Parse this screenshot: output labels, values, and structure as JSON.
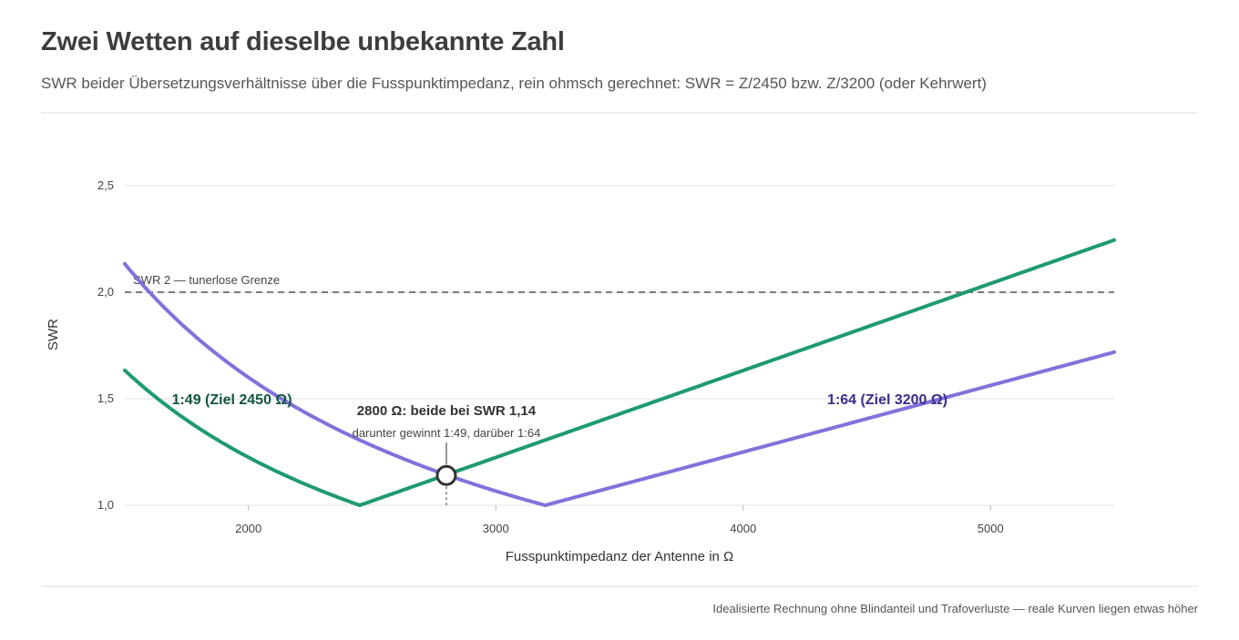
{
  "header": {
    "title": "Zwei Wetten auf dieselbe unbekannte Zahl",
    "subtitle": "SWR beider Übersetzungsverhältnisse über die Fusspunktimpedanz, rein ohmsch gerechnet: SWR = Z/2450 bzw. Z/3200 (oder Kehrwert)"
  },
  "footer": {
    "note": "Idealisierte Rechnung ohne Blindanteil und Trafoverluste — reale Kurven liegen etwas höher"
  },
  "colors": {
    "series_1_49": "#1e9a72",
    "series_1_64": "#8272da",
    "label_1_49": "#12563f",
    "label_1_64": "#3b2d8a",
    "reference": "#555555",
    "grid": "#ececec"
  },
  "chart_data": {
    "type": "line",
    "xlabel": "Fusspunktimpedanz der Antenne in Ω",
    "ylabel": "SWR",
    "xlim": [
      1500,
      5500
    ],
    "ylim": [
      1.0,
      2.5
    ],
    "x_ticks": [
      2000,
      3000,
      4000,
      5000
    ],
    "x_tick_labels": [
      "2000",
      "3000",
      "4000",
      "5000"
    ],
    "y_ticks": [
      1.0,
      1.5,
      2.0,
      2.5
    ],
    "y_tick_labels": [
      "1,0",
      "1,5",
      "2,0",
      "2,5"
    ],
    "grid": "horizontal",
    "series": [
      {
        "name": "1:49 (Ziel 2450 Ω)",
        "target": 2450,
        "x": [
          1500,
          1600,
          1700,
          1800,
          1900,
          2000,
          2100,
          2200,
          2300,
          2400,
          2450,
          2600,
          2800,
          3000,
          3200,
          3500,
          4000,
          4500,
          5000,
          5500
        ],
        "values": [
          1.633,
          1.531,
          1.441,
          1.361,
          1.289,
          1.225,
          1.167,
          1.114,
          1.065,
          1.021,
          1.0,
          1.061,
          1.143,
          1.224,
          1.306,
          1.429,
          1.633,
          1.837,
          2.041,
          2.245
        ],
        "label_anchor_x": 1690,
        "label_anchor_y": 1.5
      },
      {
        "name": "1:64 (Ziel 3200 Ω)",
        "target": 3200,
        "x": [
          1500,
          1600,
          1700,
          1800,
          1900,
          2000,
          2100,
          2200,
          2300,
          2400,
          2500,
          2600,
          2800,
          3000,
          3200,
          3500,
          4000,
          4500,
          5000,
          5500
        ],
        "values": [
          2.133,
          2.0,
          1.882,
          1.778,
          1.684,
          1.6,
          1.524,
          1.455,
          1.391,
          1.333,
          1.28,
          1.231,
          1.143,
          1.067,
          1.0,
          1.094,
          1.25,
          1.406,
          1.563,
          1.719
        ],
        "label_anchor_x": 4340,
        "label_anchor_y": 1.5
      }
    ],
    "reference_line": {
      "y": 2.0,
      "label": "SWR 2 — tunerlose Grenze"
    },
    "annotation": {
      "x": 2800,
      "y": 1.14,
      "title": "2800 Ω: beide bei SWR 1,14",
      "text": "darunter gewinnt 1:49, darüber 1:64"
    }
  }
}
